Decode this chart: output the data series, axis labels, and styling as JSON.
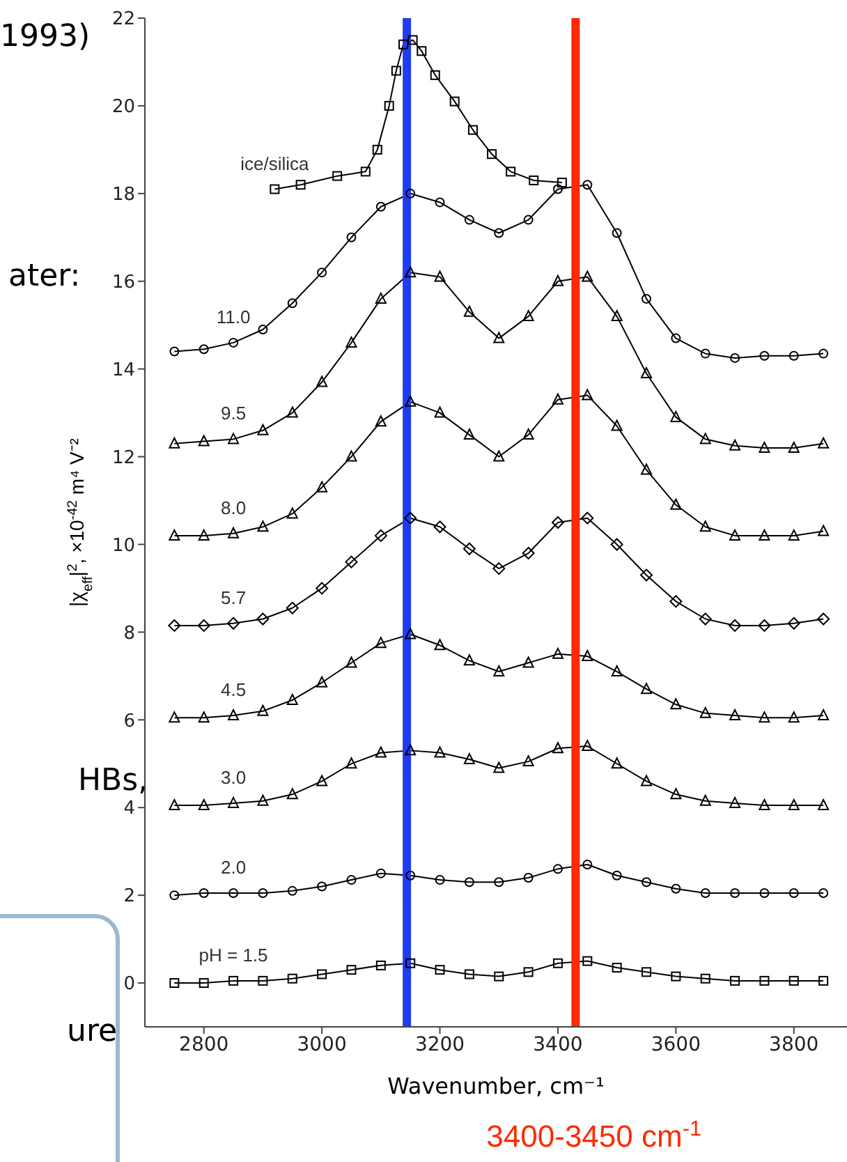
{
  "chart_data": {
    "type": "line",
    "xlabel": "Wavenumber, cm⁻¹",
    "ylabel": "|χ$_{eff}$|$^{2}$, ×10$^{-42}$ m⁴ V⁻²",
    "x": [
      2750,
      2800,
      2850,
      2900,
      2950,
      3000,
      3050,
      3100,
      3150,
      3200,
      3250,
      3300,
      3350,
      3400,
      3450,
      3500,
      3550,
      3600,
      3650,
      3700,
      3750,
      3800,
      3850
    ],
    "xlim": [
      2700,
      3890
    ],
    "xticks": [
      2800,
      3000,
      3200,
      3400,
      3600,
      3800
    ],
    "ylim": [
      -1,
      22
    ],
    "yticks": [
      0,
      2,
      4,
      6,
      8,
      10,
      12,
      14,
      16,
      18,
      20,
      22
    ],
    "series": [
      {
        "name": "pH = 1.5",
        "color": "#000000",
        "marker": "square",
        "values": [
          0,
          0,
          0.05,
          0.05,
          0.1,
          0.2,
          0.3,
          0.4,
          0.45,
          0.3,
          0.2,
          0.15,
          0.25,
          0.45,
          0.5,
          0.35,
          0.25,
          0.15,
          0.1,
          0.05,
          0.05,
          0.05,
          0.05
        ]
      },
      {
        "name": "2.0",
        "color": "#000000",
        "marker": "circle",
        "values": [
          2.0,
          2.05,
          2.05,
          2.05,
          2.1,
          2.2,
          2.35,
          2.5,
          2.45,
          2.35,
          2.3,
          2.3,
          2.4,
          2.6,
          2.7,
          2.45,
          2.3,
          2.15,
          2.05,
          2.05,
          2.05,
          2.05,
          2.05
        ]
      },
      {
        "name": "3.0",
        "color": "#000000",
        "marker": "triangle",
        "values": [
          4.05,
          4.05,
          4.1,
          4.15,
          4.3,
          4.6,
          5.0,
          5.25,
          5.3,
          5.25,
          5.1,
          4.9,
          5.05,
          5.35,
          5.4,
          5.0,
          4.6,
          4.3,
          4.15,
          4.1,
          4.05,
          4.05,
          4.05
        ]
      },
      {
        "name": "4.5",
        "color": "#000000",
        "marker": "triangle",
        "values": [
          6.05,
          6.05,
          6.1,
          6.2,
          6.45,
          6.85,
          7.3,
          7.75,
          7.95,
          7.7,
          7.35,
          7.1,
          7.3,
          7.5,
          7.45,
          7.1,
          6.7,
          6.35,
          6.15,
          6.1,
          6.05,
          6.05,
          6.1
        ]
      },
      {
        "name": "5.7",
        "color": "#000000",
        "marker": "diamond",
        "values": [
          8.15,
          8.15,
          8.2,
          8.3,
          8.55,
          9.0,
          9.6,
          10.2,
          10.6,
          10.4,
          9.9,
          9.45,
          9.8,
          10.5,
          10.6,
          10.0,
          9.3,
          8.7,
          8.3,
          8.15,
          8.15,
          8.2,
          8.3
        ]
      },
      {
        "name": "8.0",
        "color": "#000000",
        "marker": "triangle",
        "values": [
          10.2,
          10.2,
          10.25,
          10.4,
          10.7,
          11.3,
          12.0,
          12.8,
          13.25,
          13.0,
          12.5,
          12.0,
          12.5,
          13.3,
          13.4,
          12.7,
          11.7,
          10.9,
          10.4,
          10.2,
          10.2,
          10.2,
          10.3
        ]
      },
      {
        "name": "9.5",
        "color": "#000000",
        "marker": "triangle",
        "values": [
          12.3,
          12.35,
          12.4,
          12.6,
          13.0,
          13.7,
          14.6,
          15.6,
          16.2,
          16.1,
          15.3,
          14.7,
          15.2,
          16.0,
          16.1,
          15.2,
          13.9,
          12.9,
          12.4,
          12.25,
          12.2,
          12.2,
          12.3
        ]
      },
      {
        "name": "11.0",
        "color": "#000000",
        "marker": "circle",
        "values": [
          14.4,
          14.45,
          14.6,
          14.9,
          15.5,
          16.2,
          17.0,
          17.7,
          18.0,
          17.8,
          17.4,
          17.1,
          17.4,
          18.1,
          18.2,
          17.1,
          15.6,
          14.7,
          14.35,
          14.25,
          14.3,
          14.3,
          14.35
        ]
      },
      {
        "name": "ice/silica",
        "color": "#000000",
        "marker": "square",
        "x": [
          2920,
          2964,
          3026,
          3074,
          3094,
          3114,
          3126,
          3138,
          3154,
          3169,
          3192,
          3225,
          3256,
          3288,
          3320,
          3359,
          3407
        ],
        "values": [
          18.1,
          18.2,
          18.4,
          18.5,
          19.0,
          20.0,
          20.8,
          21.4,
          21.5,
          21.25,
          20.7,
          20.1,
          19.45,
          18.9,
          18.5,
          18.3,
          18.25
        ]
      }
    ],
    "ref_lines": [
      {
        "axis": "x",
        "value": 3144,
        "color": "#1f3cf5"
      },
      {
        "axis": "x",
        "value": 3430,
        "color": "#ff2a00",
        "label": "3400-3450 cm$^{-1}$"
      }
    ],
    "annotations": [
      "1993)",
      "ater:",
      "HBs,",
      "ure"
    ]
  }
}
